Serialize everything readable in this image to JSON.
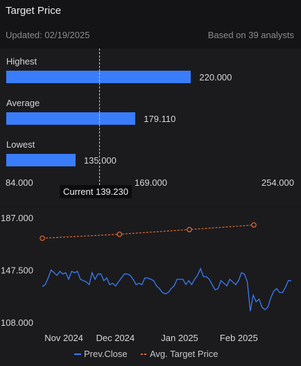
{
  "header": {
    "title": "Target Price",
    "updated_label": "Updated:",
    "updated_date": "02/19/2025",
    "analysts_text": "Based on 39 analysts"
  },
  "range": {
    "bars": [
      {
        "label": "Highest",
        "value": "220.000",
        "amount": 220.0
      },
      {
        "label": "Average",
        "value": "179.110",
        "amount": 179.11
      },
      {
        "label": "Lowest",
        "value": "135.000",
        "amount": 135.0
      }
    ],
    "axis_ticks": [
      "84.000",
      "169.000",
      "254.000"
    ],
    "axis_min": 84,
    "axis_max": 254,
    "current_label": "Current 139.230",
    "current_value": 139.23,
    "bar_color": "#3a7dfb"
  },
  "chart_data": {
    "type": "line",
    "y_ticks": [
      "187.000",
      "147.500",
      "108.000"
    ],
    "ylim": [
      108,
      187
    ],
    "x_ticks": [
      "Nov 2024",
      "Dec 2024",
      "Jan 2025",
      "Feb 2025"
    ],
    "x_tick_positions": [
      0.1,
      0.3,
      0.55,
      0.78
    ],
    "series": [
      {
        "name": "Prev.Close",
        "color": "#3a7dfb",
        "values": [
          135.5,
          137,
          142,
          148,
          146,
          144,
          147,
          145,
          146,
          141,
          147,
          146,
          147,
          141,
          140,
          139,
          137,
          146,
          141,
          145,
          145,
          140,
          142,
          137,
          138,
          136,
          139,
          142,
          145,
          145,
          144,
          141,
          137,
          138,
          137,
          142,
          142,
          141,
          140,
          136,
          134,
          131,
          130,
          131,
          134,
          136,
          141,
          141,
          141,
          137,
          140,
          137,
          141,
          144,
          149,
          143,
          143,
          141,
          137,
          133,
          134,
          140,
          138,
          136,
          141,
          139,
          137,
          140,
          146,
          145,
          139,
          117,
          129,
          124,
          126,
          120,
          118,
          120,
          127,
          132,
          134,
          131,
          131,
          135,
          140,
          140
        ]
      },
      {
        "name": "Avg. Target Price",
        "color": "#e06a2c",
        "values": [
          172,
          175,
          178.5,
          182
        ],
        "marker_positions": [
          0,
          0.365,
          0.695,
          1.0
        ]
      }
    ]
  }
}
